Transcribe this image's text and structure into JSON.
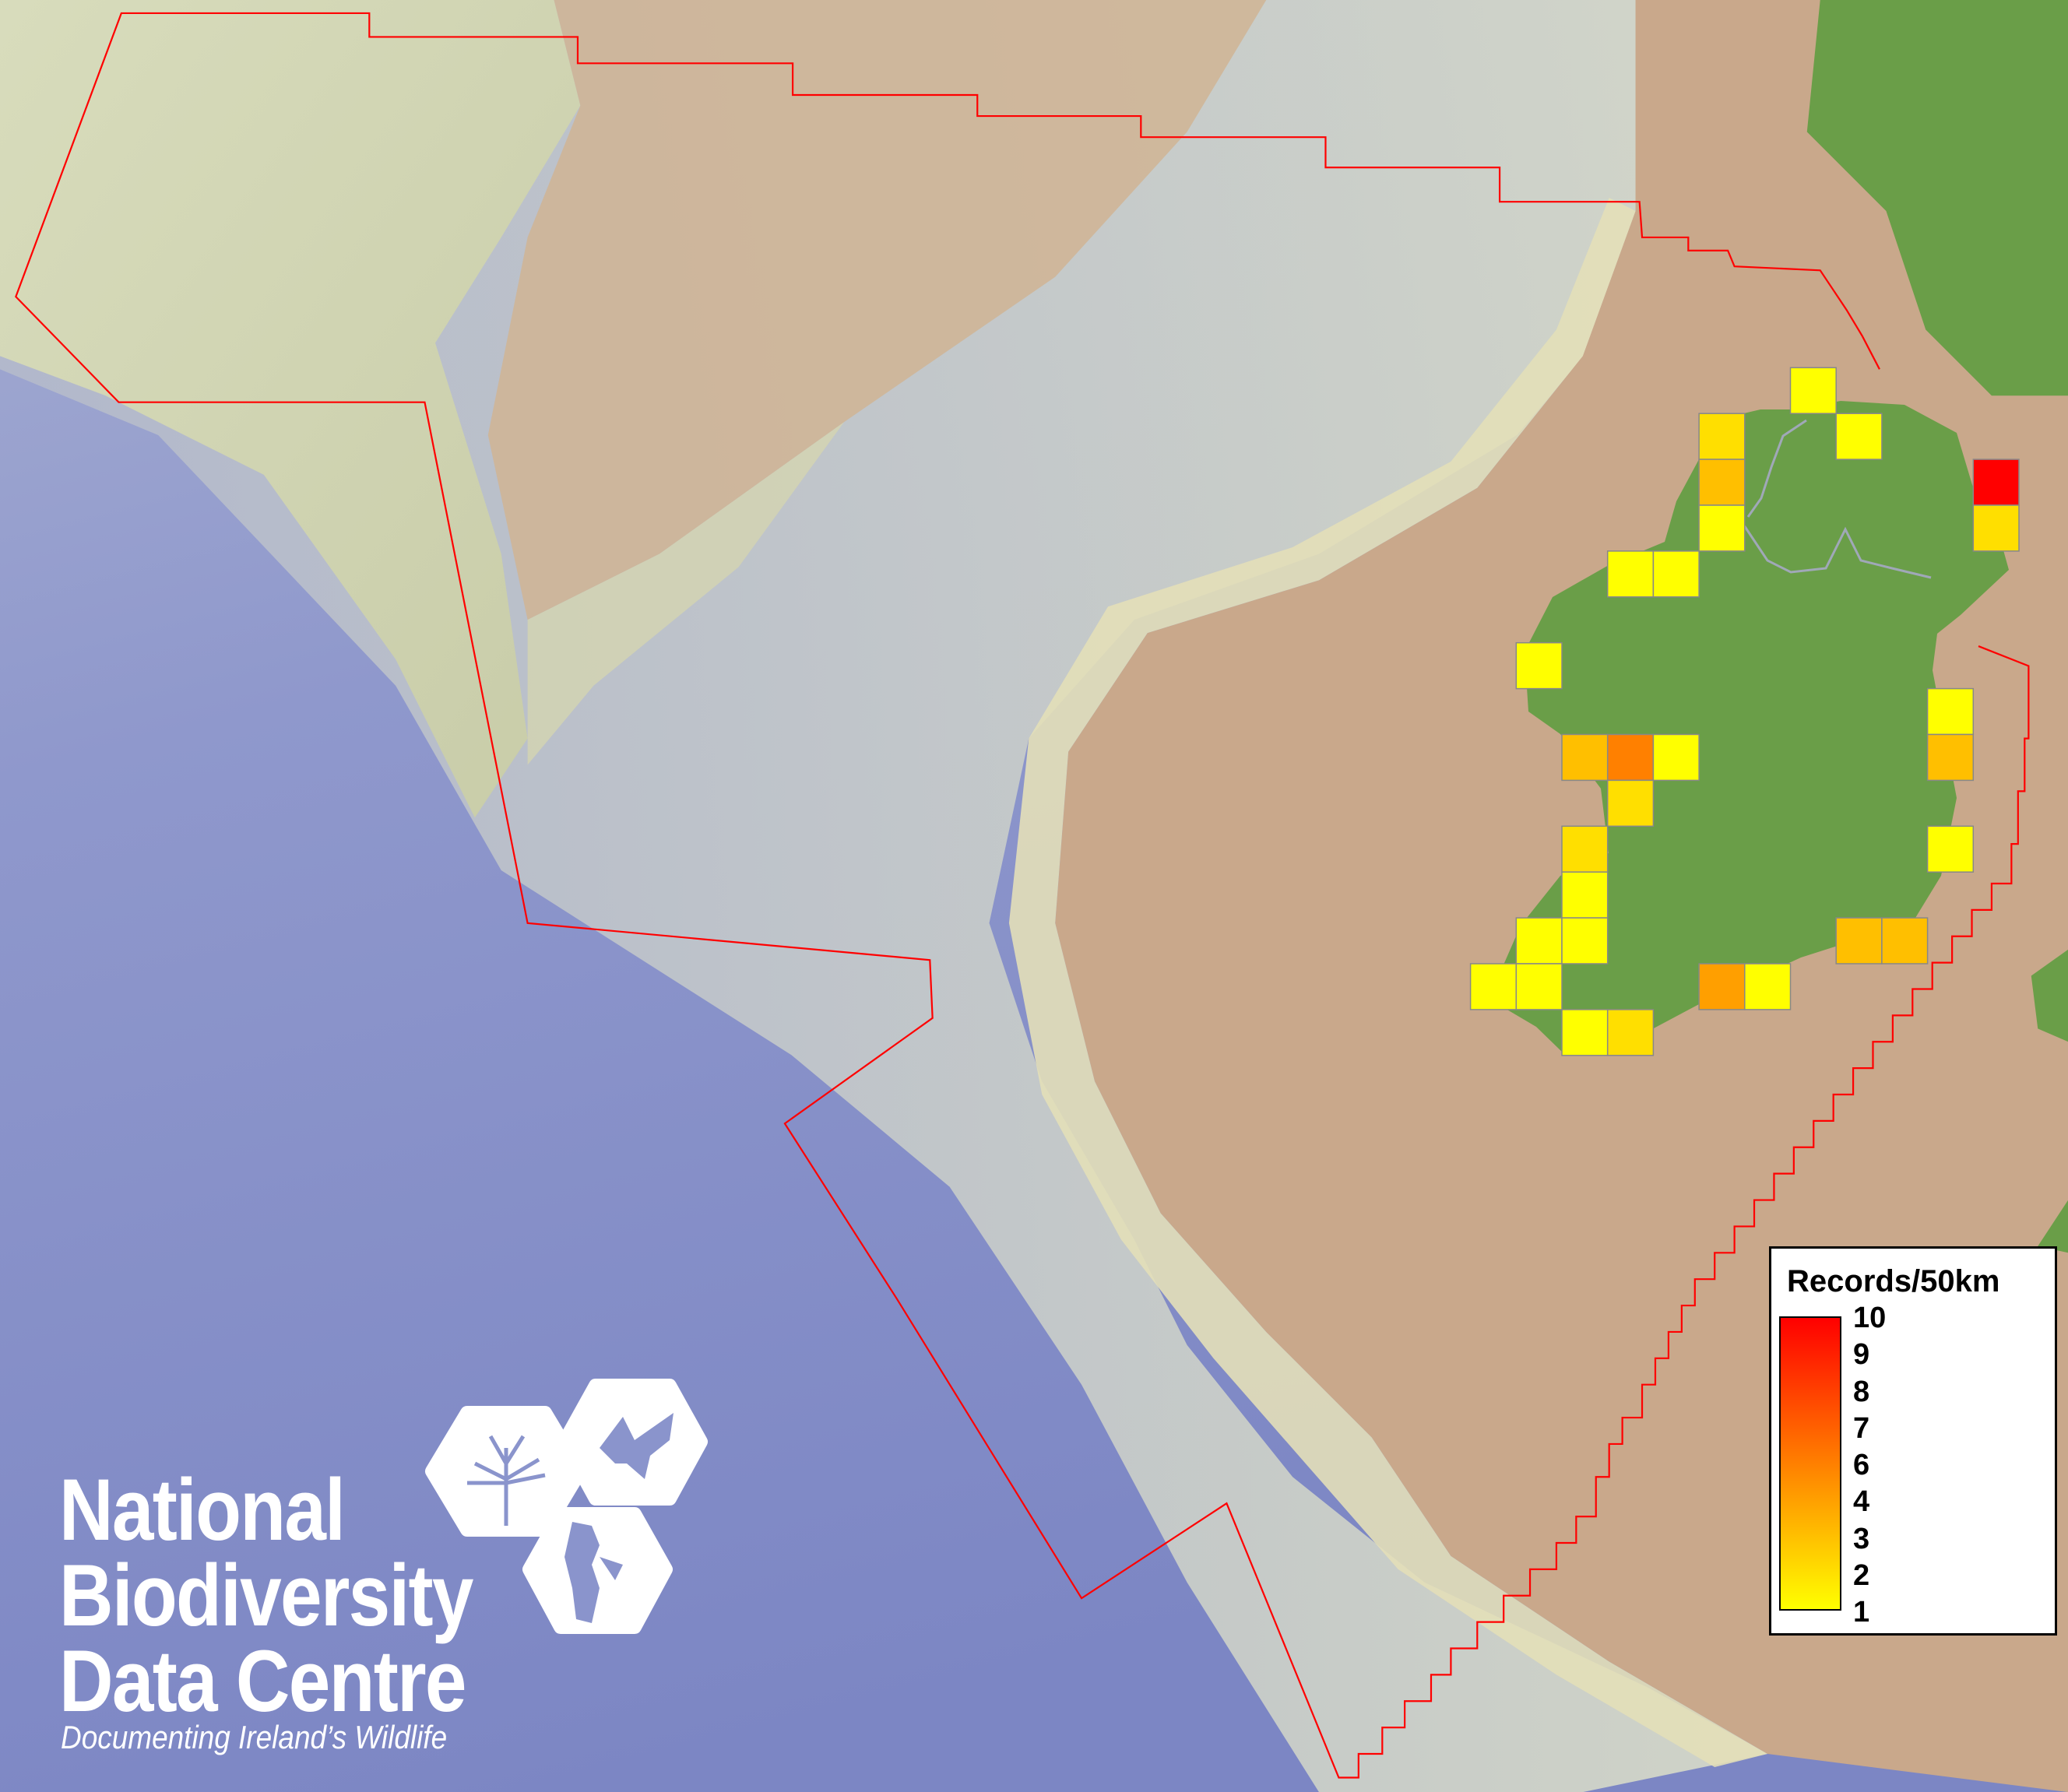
{
  "legend": {
    "title": "Records/50km",
    "tick_labels": [
      "10",
      "9",
      "8",
      "7",
      "6",
      "4",
      "3",
      "2",
      "1"
    ],
    "color_low": "#ffff00",
    "color_high": "#ff0000"
  },
  "grid_cells": {
    "values": [
      1,
      2,
      1,
      3,
      10,
      1,
      2,
      1,
      1,
      1,
      1,
      3,
      6,
      1,
      3,
      2,
      2,
      1,
      1,
      1,
      1,
      3,
      3,
      1,
      1,
      4,
      1,
      1,
      2
    ]
  },
  "logo": {
    "line1": "National",
    "line2": "Biodiversity",
    "line3": "Data Centre",
    "tagline": "Documenting Ireland’s Wildlife"
  },
  "colors": {
    "boundary": "#ff0000",
    "land": "#6a9e48",
    "shelf": "#c9a88b",
    "deep_sea": "#8590c8"
  }
}
